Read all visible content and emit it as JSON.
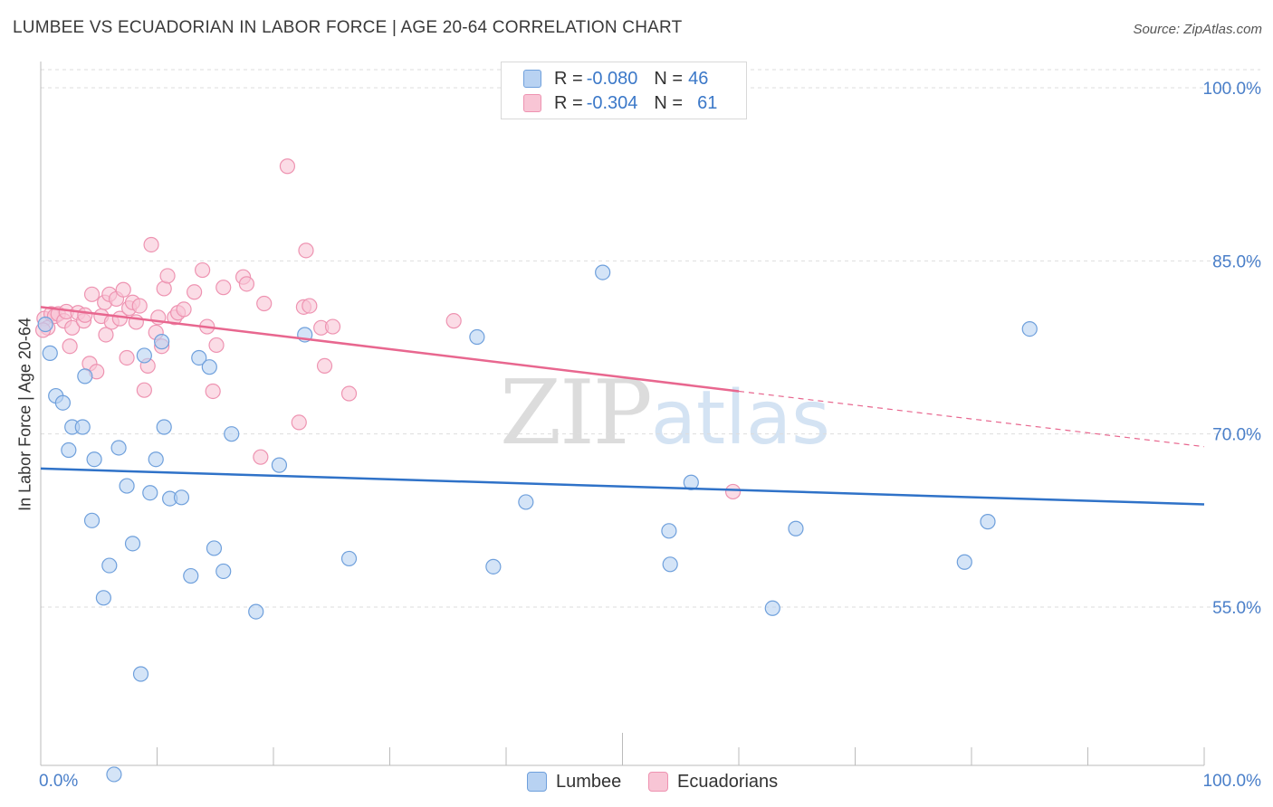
{
  "header": {
    "title": "LUMBEE VS ECUADORIAN IN LABOR FORCE | AGE 20-64 CORRELATION CHART",
    "source": "Source: ZipAtlas.com"
  },
  "watermark": {
    "zip": "ZIP",
    "atlas": "atlas"
  },
  "legend": {
    "rows": [
      {
        "r_label": "R = ",
        "r_value": "-0.080",
        "n_label": "N = ",
        "n_value": "46",
        "color": "#8ab4e8"
      },
      {
        "r_label": "R = ",
        "r_value": "-0.304",
        "n_label": "N = ",
        "n_value": "61",
        "color": "#f4a8c0"
      }
    ]
  },
  "bottom_legend": {
    "lumbee": "Lumbee",
    "ecuadorians": "Ecuadorians"
  },
  "colors": {
    "lumbee_fill": "#b8d2f2",
    "lumbee_stroke": "#6fa0dc",
    "lumbee_line": "#2f72c8",
    "ecu_fill": "#f8c5d5",
    "ecu_stroke": "#ee93b1",
    "ecu_line": "#e8678f",
    "tick_label": "#4a7fc9",
    "grid": "#dddddd"
  },
  "chart_data": {
    "type": "scatter",
    "title": "LUMBEE VS ECUADORIAN IN LABOR FORCE | AGE 20-64 CORRELATION CHART",
    "xlabel": "",
    "ylabel": "In Labor Force | Age 20-64",
    "xlim": [
      0,
      100
    ],
    "ylim": [
      42.5,
      103
    ],
    "x_tick_labels": [
      "0.0%",
      "100.0%"
    ],
    "y_ticks": [
      55,
      70,
      85,
      100
    ],
    "y_tick_labels": [
      "55.0%",
      "70.0%",
      "85.0%",
      "100.0%"
    ],
    "grid": true,
    "legend_position": "top-center",
    "series": [
      {
        "name": "Lumbee",
        "r": -0.08,
        "n": 46,
        "trend": {
          "x": [
            0,
            100
          ],
          "y": [
            67.0,
            63.9
          ],
          "dashed_from": null
        },
        "points": [
          [
            0.4,
            79.5
          ],
          [
            0.8,
            77.0
          ],
          [
            1.3,
            73.3
          ],
          [
            1.9,
            72.7
          ],
          [
            2.4,
            68.6
          ],
          [
            2.7,
            70.6
          ],
          [
            3.6,
            70.6
          ],
          [
            3.8,
            75.0
          ],
          [
            4.4,
            62.5
          ],
          [
            4.6,
            67.8
          ],
          [
            5.4,
            55.8
          ],
          [
            5.9,
            58.6
          ],
          [
            6.7,
            68.8
          ],
          [
            7.4,
            65.5
          ],
          [
            7.9,
            60.5
          ],
          [
            8.6,
            49.2
          ],
          [
            8.9,
            76.8
          ],
          [
            9.4,
            64.9
          ],
          [
            9.9,
            67.8
          ],
          [
            10.4,
            78.0
          ],
          [
            10.6,
            70.6
          ],
          [
            11.1,
            64.4
          ],
          [
            12.1,
            64.5
          ],
          [
            12.9,
            57.7
          ],
          [
            13.6,
            76.6
          ],
          [
            14.5,
            75.8
          ],
          [
            14.9,
            60.1
          ],
          [
            15.7,
            58.1
          ],
          [
            16.4,
            70.0
          ],
          [
            18.5,
            54.6
          ],
          [
            20.5,
            67.3
          ],
          [
            22.7,
            78.6
          ],
          [
            26.5,
            59.2
          ],
          [
            37.5,
            78.4
          ],
          [
            38.9,
            58.5
          ],
          [
            41.7,
            64.1
          ],
          [
            48.3,
            84.0
          ],
          [
            54.0,
            61.6
          ],
          [
            54.1,
            58.7
          ],
          [
            55.9,
            65.8
          ],
          [
            62.9,
            54.9
          ],
          [
            64.9,
            61.8
          ],
          [
            79.4,
            58.9
          ],
          [
            81.4,
            62.4
          ],
          [
            85.0,
            79.1
          ],
          [
            6.3,
            40.5
          ]
        ]
      },
      {
        "name": "Ecuadorians",
        "r": -0.304,
        "n": 61,
        "trend": {
          "x": [
            0,
            60,
            100
          ],
          "y": [
            81.0,
            73.7,
            68.9
          ],
          "dashed_from": 60
        },
        "points": [
          [
            0.3,
            80.0
          ],
          [
            0.6,
            79.2
          ],
          [
            0.9,
            80.4
          ],
          [
            1.2,
            80.2
          ],
          [
            1.5,
            80.4
          ],
          [
            2.0,
            79.8
          ],
          [
            2.2,
            80.6
          ],
          [
            2.5,
            77.6
          ],
          [
            2.7,
            79.2
          ],
          [
            3.2,
            80.5
          ],
          [
            3.7,
            79.8
          ],
          [
            3.8,
            80.3
          ],
          [
            4.2,
            76.1
          ],
          [
            4.4,
            82.1
          ],
          [
            4.8,
            75.4
          ],
          [
            5.2,
            80.2
          ],
          [
            5.5,
            81.4
          ],
          [
            5.6,
            78.6
          ],
          [
            5.9,
            82.1
          ],
          [
            6.1,
            79.7
          ],
          [
            6.5,
            81.7
          ],
          [
            6.8,
            80.0
          ],
          [
            7.1,
            82.5
          ],
          [
            7.4,
            76.6
          ],
          [
            7.6,
            80.9
          ],
          [
            7.9,
            81.4
          ],
          [
            8.2,
            79.7
          ],
          [
            8.5,
            81.1
          ],
          [
            8.9,
            73.8
          ],
          [
            9.2,
            75.9
          ],
          [
            9.5,
            86.4
          ],
          [
            9.9,
            78.8
          ],
          [
            10.1,
            80.1
          ],
          [
            10.4,
            77.6
          ],
          [
            10.6,
            82.6
          ],
          [
            10.9,
            83.7
          ],
          [
            11.5,
            80.1
          ],
          [
            11.8,
            80.5
          ],
          [
            12.3,
            80.8
          ],
          [
            13.2,
            82.3
          ],
          [
            13.9,
            84.2
          ],
          [
            14.3,
            79.3
          ],
          [
            14.8,
            73.7
          ],
          [
            15.1,
            77.7
          ],
          [
            15.7,
            82.7
          ],
          [
            17.4,
            83.6
          ],
          [
            17.7,
            83.0
          ],
          [
            18.9,
            68.0
          ],
          [
            19.2,
            81.3
          ],
          [
            21.2,
            93.2
          ],
          [
            22.2,
            71.0
          ],
          [
            22.6,
            81.0
          ],
          [
            22.8,
            85.9
          ],
          [
            23.1,
            81.1
          ],
          [
            24.1,
            79.2
          ],
          [
            24.4,
            75.9
          ],
          [
            25.1,
            79.3
          ],
          [
            26.5,
            73.5
          ],
          [
            35.5,
            79.8
          ],
          [
            59.5,
            65.0
          ],
          [
            0.2,
            79.0
          ]
        ]
      }
    ]
  }
}
